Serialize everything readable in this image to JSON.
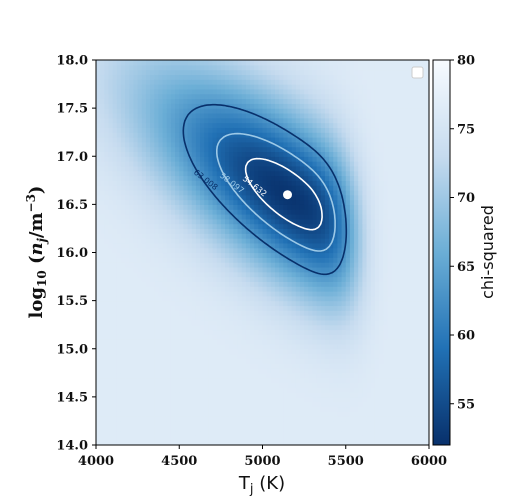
{
  "chart_data": {
    "type": "heatmap",
    "xlabel": "T_j (K)",
    "ylabel": "log10 (n_j / m^-3)",
    "colorbar_label": "chi-squared",
    "xlim": [
      4000,
      6000
    ],
    "ylim": [
      14.0,
      18.0
    ],
    "clim": [
      52,
      80
    ],
    "colormap": "Blues_r",
    "x_ticks": [
      "4000",
      "4500",
      "5000",
      "5500",
      "6000"
    ],
    "y_ticks": [
      "14.0",
      "14.5",
      "15.0",
      "15.5",
      "16.0",
      "16.5",
      "17.0",
      "17.5",
      "18.0"
    ],
    "colorbar_ticks": [
      "55",
      "60",
      "65",
      "70",
      "75",
      "80"
    ],
    "best_fit_point": {
      "x": 5150,
      "y": 16.6
    },
    "contours": [
      {
        "level": 54.632,
        "label": "54.632",
        "color": "#ffffff"
      },
      {
        "level": 58.097,
        "label": "58.097",
        "color": "#9cc9e7"
      },
      {
        "level": 63.008,
        "label": "63.008",
        "color": "#08306b"
      }
    ],
    "legend": {
      "placement": "top-right",
      "entries": []
    }
  }
}
